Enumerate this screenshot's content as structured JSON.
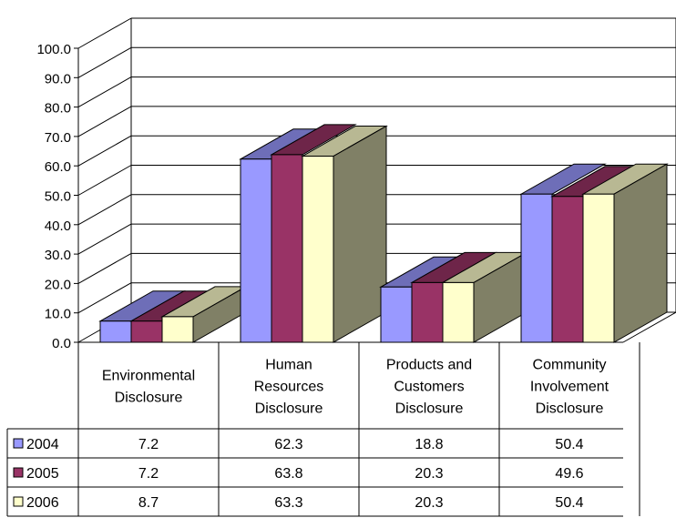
{
  "chart_data": {
    "type": "bar",
    "categories": [
      [
        "Environmental",
        "Disclosure"
      ],
      [
        "Human",
        "Resources",
        "Disclosure"
      ],
      [
        "Products and",
        "Customers",
        "Disclosure"
      ],
      [
        "Community",
        "Involvement",
        "Disclosure"
      ]
    ],
    "series": [
      {
        "name": "2004",
        "values": [
          7.2,
          62.3,
          18.8,
          50.4
        ],
        "color": "#9999ff"
      },
      {
        "name": "2005",
        "values": [
          7.2,
          63.8,
          20.3,
          49.6
        ],
        "color": "#993366"
      },
      {
        "name": "2006",
        "values": [
          8.7,
          63.3,
          20.3,
          50.4
        ],
        "color": "#ffffcc"
      }
    ],
    "value_labels": [
      [
        "7.2",
        "62.3",
        "18.8",
        "50.4"
      ],
      [
        "7.2",
        "63.8",
        "20.3",
        "49.6"
      ],
      [
        "8.7",
        "63.3",
        "20.3",
        "50.4"
      ]
    ],
    "yticks": [
      "0.0",
      "10.0",
      "20.0",
      "30.0",
      "40.0",
      "50.0",
      "60.0",
      "70.0",
      "80.0",
      "90.0",
      "100.0"
    ],
    "ylim": [
      0,
      100
    ],
    "grid": true,
    "style": "3d-clustered-column",
    "data_table": true,
    "legend": "in-data-table",
    "title": "",
    "xlabel": "",
    "ylabel": ""
  }
}
